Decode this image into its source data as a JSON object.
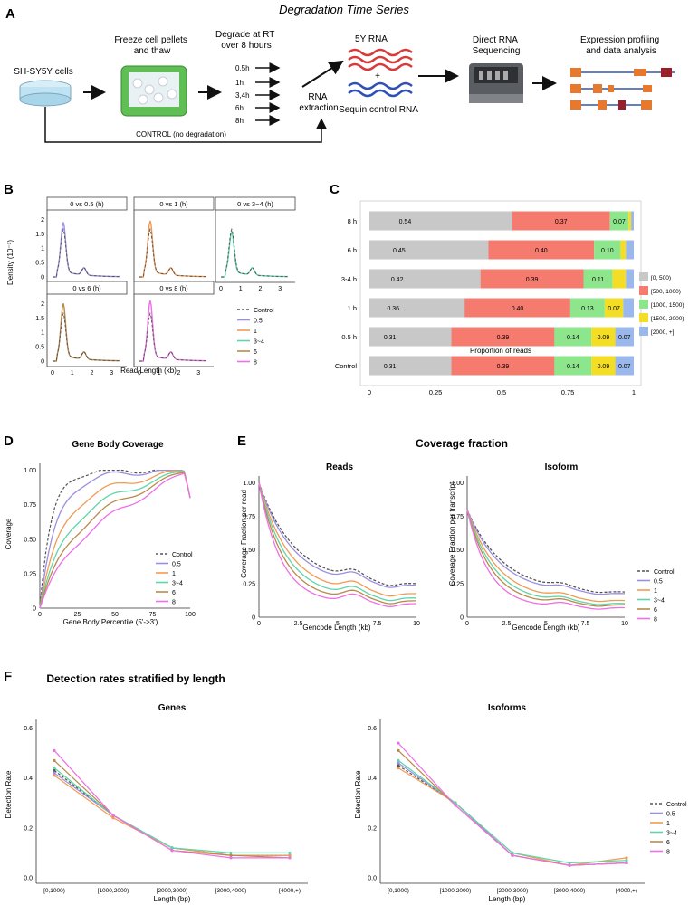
{
  "figure": {
    "panel_labels": [
      "A",
      "B",
      "C",
      "D",
      "E",
      "F"
    ],
    "colors": {
      "control": "#555555",
      "0.5": "#9b8fe0",
      "1": "#f39a52",
      "3-4": "#5ed6a8",
      "6": "#b88a4a",
      "8": "#ee6fe6",
      "bin0": "#c8c8c8",
      "bin1": "#f57b6e",
      "bin2": "#8ee68c",
      "bin3": "#f4dd25",
      "bin4": "#9bb8ec"
    }
  },
  "panel_a": {
    "title": "Degradation Time Series",
    "cells_label": "SH-SY5Y cells",
    "freeze_label": [
      "Freeze cell pellets",
      "and thaw"
    ],
    "degrade_label": [
      "Degrade at RT",
      "over 8 hours"
    ],
    "times": [
      "0.5h",
      "1h",
      "3,4h",
      "6h",
      "8h"
    ],
    "rna_extraction": [
      "RNA",
      "extraction"
    ],
    "rna_5y": "5Y RNA",
    "plus": "+",
    "sequin": "Sequin control RNA",
    "direct_rna": [
      "Direct RNA",
      "Sequencing"
    ],
    "expression": [
      "Expression profiling",
      "and data analysis"
    ],
    "control_label": "CONTROL (no degradation)"
  },
  "panel_b": {
    "facets": [
      "0 vs 0.5 (h)",
      "0 vs 1 (h)",
      "0 vs 3~4 (h)",
      "0 vs 6 (h)",
      "0 vs 8 (h)"
    ],
    "ylabel": "Density (10⁻³)",
    "xlabel": "Read Length (kb)",
    "y_ticks": [
      "0",
      "0.5",
      "1",
      "1.5",
      "2"
    ],
    "x_ticks": [
      "0",
      "1",
      "2",
      "3"
    ],
    "legend": [
      "Control",
      "0.5",
      "1",
      "3~4",
      "6",
      "8"
    ]
  },
  "panel_c": {
    "chart_data": {
      "type": "bar",
      "orientation": "horizontal-stacked",
      "categories": [
        "8 h",
        "6 h",
        "3-4 h",
        "1 h",
        "0.5 h",
        "Control"
      ],
      "series": [
        {
          "name": "[0, 500)",
          "values": [
            0.54,
            0.45,
            0.42,
            0.36,
            0.31,
            0.31
          ],
          "labels": [
            "0.54",
            "0.45",
            "0.42",
            "0.36",
            "0.31",
            "0.31"
          ]
        },
        {
          "name": "[500, 1000)",
          "values": [
            0.37,
            0.4,
            0.39,
            0.4,
            0.39,
            0.39
          ],
          "labels": [
            "0.37",
            "0.40",
            "0.39",
            "0.40",
            "0.39",
            "0.39"
          ]
        },
        {
          "name": "[1000, 1500)",
          "values": [
            0.07,
            0.1,
            0.11,
            0.13,
            0.14,
            0.14
          ],
          "labels": [
            "0.07",
            "0.10",
            "0.11",
            "0.13",
            "0.14",
            "0.14"
          ]
        },
        {
          "name": "[1500, 2000)",
          "values": [
            0.01,
            0.02,
            0.05,
            0.07,
            0.09,
            0.09
          ],
          "labels": [
            "",
            "",
            "",
            "0.07",
            "0.09",
            "0.09"
          ]
        },
        {
          "name": "[2000, +]",
          "values": [
            0.01,
            0.03,
            0.03,
            0.04,
            0.07,
            0.07
          ],
          "labels": [
            "",
            "",
            "",
            "",
            "0.07",
            "0.07"
          ]
        }
      ],
      "xlabel": "Proportion of reads",
      "x_ticks": [
        "0",
        "0.25",
        "0.5",
        "0.75",
        "1"
      ],
      "xlim": [
        0,
        1
      ]
    }
  },
  "panel_d": {
    "title": "Gene Body Coverage",
    "ylabel": "Coverage",
    "xlabel": "Gene Body Percentile (5'->3')",
    "y_ticks": [
      "0",
      "0.25",
      "0.50",
      "0.75",
      "1.00"
    ],
    "x_ticks": [
      "0",
      "25",
      "50",
      "75",
      "100"
    ],
    "legend": [
      "Control",
      "0.5",
      "1",
      "3~4",
      "6",
      "8"
    ]
  },
  "panel_e": {
    "title": "Coverage fraction",
    "reads_title": "Reads",
    "isoform_title": "Isoform",
    "reads_ylabel": "Coverage Fraction per read",
    "isoform_ylabel": "Coverage Fraction per transcript",
    "xlabel": "Gencode Length (kb)",
    "y_ticks": [
      "0",
      "0.25",
      "0.50",
      "0.75",
      "1.00"
    ],
    "x_ticks": [
      "0",
      "2.5",
      "5",
      "7.5",
      "10"
    ],
    "legend": [
      "Control",
      "0.5",
      "1",
      "3~4",
      "6",
      "8"
    ]
  },
  "panel_f": {
    "title": "Detection rates stratified by length",
    "genes_title": "Genes",
    "isoforms_title": "Isoforms",
    "ylabel": "Detection Rate",
    "xlabel": "Length (bp)",
    "y_ticks": [
      "0.0",
      "0.2",
      "0.4",
      "0.6"
    ],
    "legend": [
      "Control",
      "0.5",
      "1",
      "3~4",
      "6",
      "8"
    ],
    "chart_data": [
      {
        "type": "line",
        "title": "Genes",
        "categories": [
          "[0,1000)",
          "[1000,2000)",
          "[2000,3000)",
          "[3000,4000)",
          "[4000,+)"
        ],
        "series": [
          {
            "name": "Control",
            "values": [
              0.43,
              0.25,
              0.12,
              0.09,
              0.09
            ]
          },
          {
            "name": "0.5",
            "values": [
              0.42,
              0.25,
              0.12,
              0.09,
              0.09
            ]
          },
          {
            "name": "1",
            "values": [
              0.41,
              0.24,
              0.12,
              0.09,
              0.09
            ]
          },
          {
            "name": "3~4",
            "values": [
              0.44,
              0.25,
              0.12,
              0.1,
              0.1
            ]
          },
          {
            "name": "6",
            "values": [
              0.47,
              0.25,
              0.11,
              0.09,
              0.08
            ]
          },
          {
            "name": "8",
            "values": [
              0.51,
              0.25,
              0.11,
              0.08,
              0.08
            ]
          }
        ],
        "ylim": [
          0,
          0.6
        ]
      },
      {
        "type": "line",
        "title": "Isoforms",
        "categories": [
          "[0,1000)",
          "[1000,2000)",
          "[2000,3000)",
          "[3000,4000)",
          "[4000,+)"
        ],
        "series": [
          {
            "name": "Control",
            "values": [
              0.45,
              0.3,
              0.09,
              0.05,
              0.06
            ]
          },
          {
            "name": "0.5",
            "values": [
              0.46,
              0.3,
              0.09,
              0.05,
              0.06
            ]
          },
          {
            "name": "1",
            "values": [
              0.44,
              0.3,
              0.1,
              0.05,
              0.08
            ]
          },
          {
            "name": "3~4",
            "values": [
              0.47,
              0.3,
              0.1,
              0.06,
              0.07
            ]
          },
          {
            "name": "6",
            "values": [
              0.51,
              0.29,
              0.09,
              0.05,
              0.06
            ]
          },
          {
            "name": "8",
            "values": [
              0.54,
              0.29,
              0.09,
              0.05,
              0.06
            ]
          }
        ],
        "ylim": [
          0,
          0.6
        ]
      }
    ]
  }
}
